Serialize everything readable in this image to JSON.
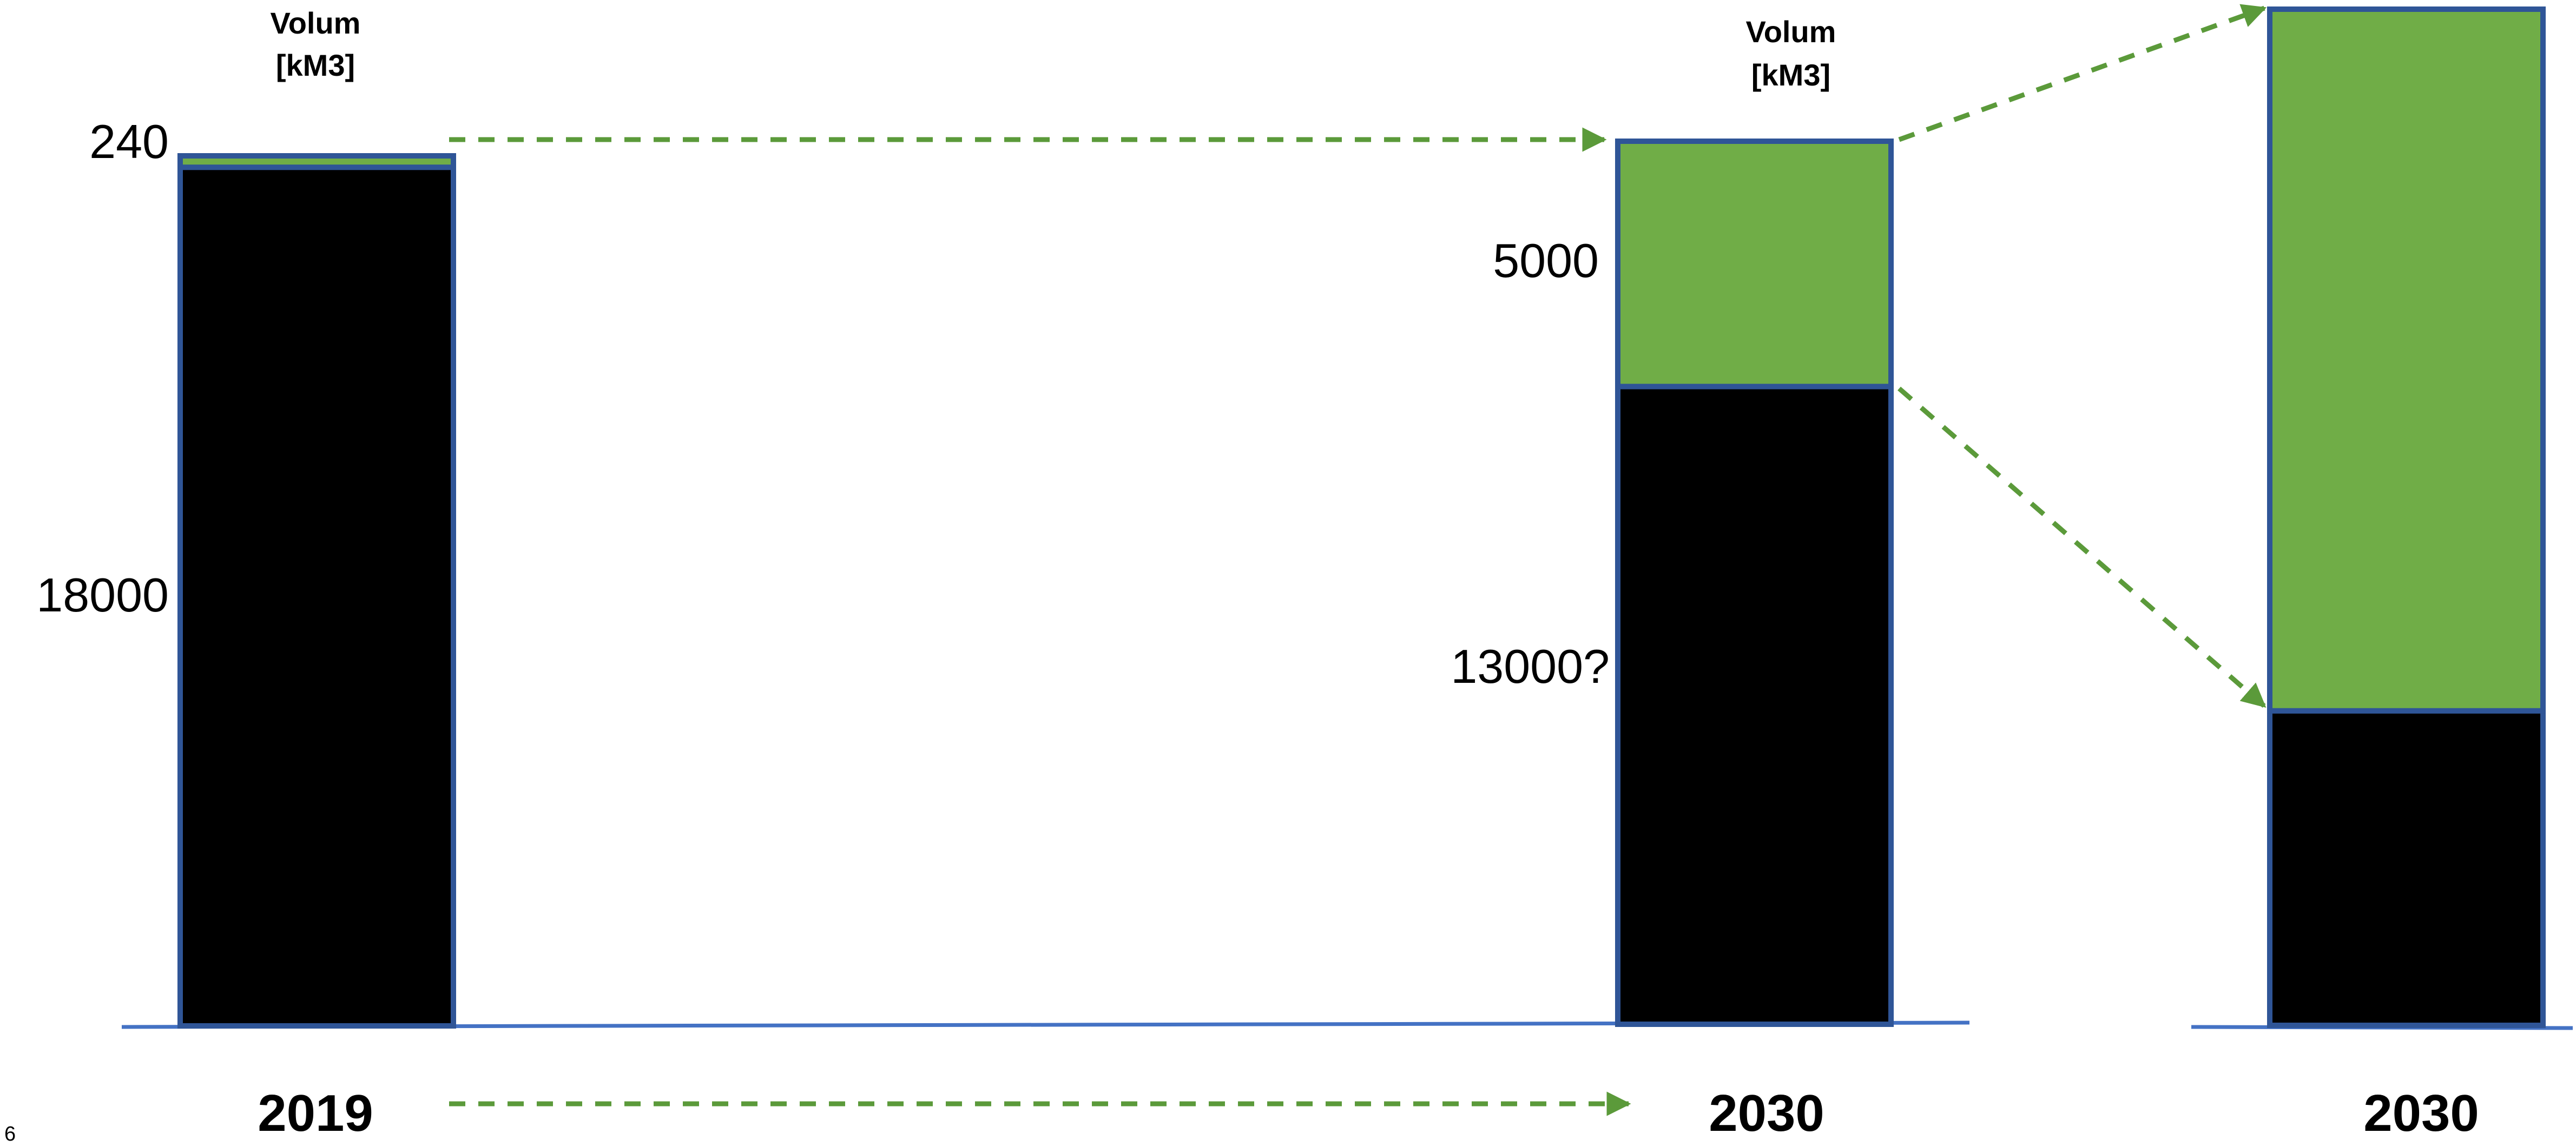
{
  "chart_data": {
    "type": "bar",
    "stacked": true,
    "colors": {
      "fossil": "#000000",
      "green": "#70AD47",
      "outline": "#2F5597",
      "baseline": "#4472C4",
      "arrow": "#5B9A3A"
    },
    "header_label_line1": "Volum",
    "header_label_line2": "[kM3]",
    "page_number": "6",
    "bars": [
      {
        "category": "2019",
        "segments": [
          {
            "color": "black",
            "value": 18000,
            "label": "18000"
          },
          {
            "color": "green",
            "value": 240,
            "label": "240"
          }
        ],
        "header": true
      },
      {
        "category": "2030",
        "segments": [
          {
            "color": "black",
            "value": 13000,
            "label": "13000?"
          },
          {
            "color": "green",
            "value": 5000,
            "label": "5000"
          }
        ],
        "header": true
      },
      {
        "category": "2030",
        "segments": [
          {
            "color": "black",
            "value": 6500,
            "label": ""
          },
          {
            "color": "green",
            "value": 14500,
            "label": ""
          }
        ],
        "header": false
      }
    ]
  }
}
